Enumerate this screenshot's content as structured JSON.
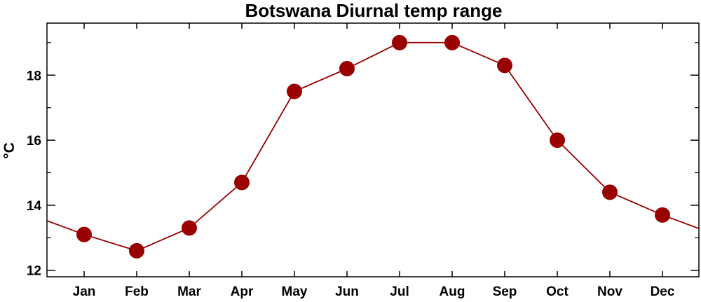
{
  "chart_data": {
    "type": "line",
    "title": "Botswana Diurnal temp range",
    "xlabel": "",
    "ylabel": "°C",
    "categories": [
      "Jan",
      "Feb",
      "Mar",
      "Apr",
      "May",
      "Jun",
      "Jul",
      "Aug",
      "Sep",
      "Oct",
      "Nov",
      "Dec"
    ],
    "series": [
      {
        "values": [
          13.1,
          12.6,
          13.3,
          14.7,
          17.5,
          18.2,
          19.0,
          19.0,
          18.3,
          16.0,
          14.4,
          13.7
        ],
        "color": "#990000"
      }
    ],
    "ylim": [
      11.8,
      19.6
    ],
    "yticks": [
      12,
      14,
      16,
      18
    ],
    "yticks_minor": [
      13,
      15,
      17,
      19
    ],
    "line_color": "#990000",
    "marker_color": "#990000",
    "grid": false,
    "legend": "none"
  }
}
